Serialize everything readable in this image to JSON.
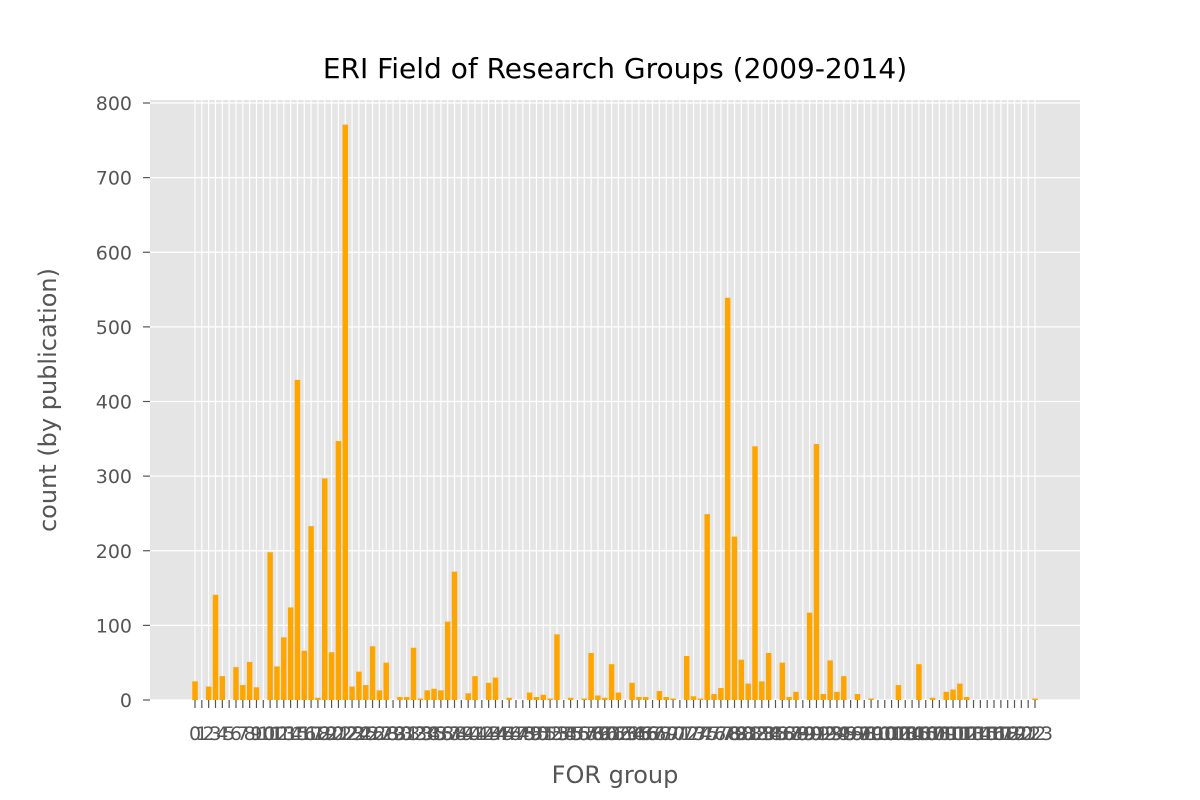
{
  "chart_data": {
    "type": "bar",
    "title": "ERI Field of Research Groups (2009-2014)",
    "xlabel": "FOR group",
    "ylabel": "count (by publication)",
    "ylim": [
      0,
      800
    ],
    "yticks": [
      0,
      100,
      200,
      300,
      400,
      500,
      600,
      700,
      800
    ],
    "xticklabels_visible": "0 1 2 3 5 6 7 8 9 10 11 12 13 14 15 16 17 18 19 20 21 22 ... 125 (densely overlapping, illegible)",
    "bar_color": "#FFA500",
    "background_color": "#E5E5E5",
    "grid": true,
    "categories": [
      "0",
      "1",
      "2",
      "3",
      "4",
      "5",
      "6",
      "7",
      "8",
      "9",
      "10",
      "11",
      "12",
      "13",
      "14",
      "15",
      "16",
      "17",
      "18",
      "19",
      "20",
      "21",
      "22",
      "23",
      "24",
      "25",
      "26",
      "27",
      "28",
      "29",
      "30",
      "31",
      "32",
      "33",
      "34",
      "35",
      "36",
      "37",
      "38",
      "39",
      "40",
      "41",
      "42",
      "43",
      "44",
      "45",
      "46",
      "47",
      "48",
      "49",
      "50",
      "51",
      "52",
      "53",
      "54",
      "55",
      "56",
      "57",
      "58",
      "59",
      "60",
      "61",
      "62",
      "63",
      "64",
      "65",
      "66",
      "67",
      "68",
      "69",
      "70",
      "71",
      "72",
      "73",
      "74",
      "75",
      "76",
      "77",
      "78",
      "79",
      "80",
      "81",
      "82",
      "83",
      "84",
      "85",
      "86",
      "87",
      "88",
      "89",
      "90",
      "91",
      "92",
      "93",
      "94",
      "95",
      "96",
      "97",
      "98",
      "99",
      "100",
      "101",
      "102",
      "103",
      "104",
      "105",
      "106",
      "107",
      "108",
      "109",
      "110",
      "111",
      "112",
      "113",
      "114",
      "115",
      "116",
      "117",
      "118",
      "119",
      "120",
      "121",
      "122",
      "123"
    ],
    "values": [
      25,
      0,
      18,
      141,
      32,
      0,
      44,
      20,
      51,
      17,
      0,
      198,
      45,
      84,
      124,
      429,
      66,
      233,
      3,
      297,
      64,
      347,
      771,
      18,
      38,
      20,
      72,
      13,
      50,
      0,
      4,
      4,
      70,
      2,
      13,
      15,
      13,
      105,
      172,
      0,
      9,
      32,
      0,
      23,
      30,
      0,
      3,
      0,
      0,
      10,
      4,
      7,
      2,
      88,
      0,
      3,
      0,
      2,
      63,
      6,
      3,
      48,
      10,
      0,
      23,
      4,
      4,
      0,
      12,
      4,
      2,
      0,
      59,
      5,
      2,
      249,
      8,
      16,
      539,
      219,
      54,
      22,
      340,
      25,
      63,
      0,
      50,
      4,
      11,
      0,
      117,
      343,
      8,
      53,
      11,
      32,
      0,
      8,
      0,
      2,
      0,
      0,
      0,
      20,
      0,
      0,
      48,
      0,
      3,
      0,
      11,
      14,
      22,
      4,
      0,
      0,
      0,
      0,
      0,
      0,
      0,
      0,
      0,
      2
    ]
  }
}
